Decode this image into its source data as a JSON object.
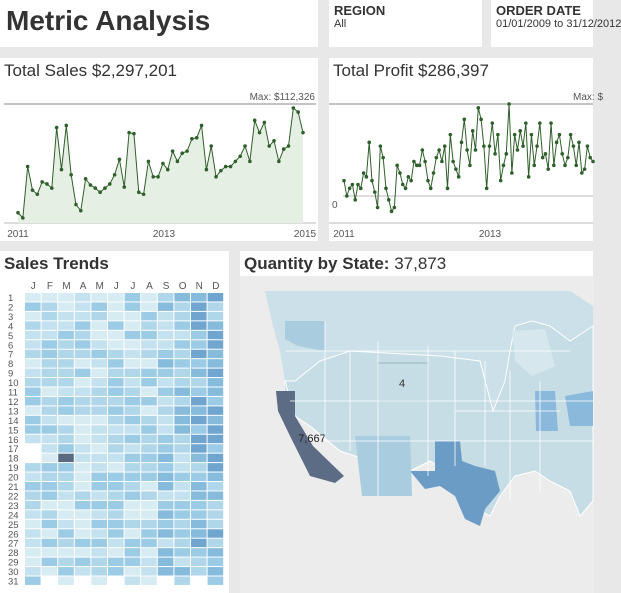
{
  "header": {
    "title": "Metric Analysis"
  },
  "filters": {
    "region": {
      "label": "REGION",
      "value": "All"
    },
    "order_date": {
      "label": "ORDER DATE",
      "value": "01/01/2009 to 31/12/2012"
    }
  },
  "sales": {
    "title": "Total Sales",
    "value": "$2,297,201",
    "max_label": "Max: $112,326",
    "x_ticks": [
      "2011",
      "2013",
      "2015"
    ]
  },
  "profit": {
    "title": "Total Profit",
    "value": "$286,397",
    "max_label": "Max: $",
    "zero_label": "0",
    "x_ticks": [
      "2011",
      "2013"
    ]
  },
  "trends": {
    "title": "Sales Trends",
    "months": [
      "J",
      "F",
      "M",
      "A",
      "M",
      "J",
      "J",
      "A",
      "S",
      "O",
      "N",
      "D"
    ],
    "days": [
      "1",
      "2",
      "3",
      "4",
      "5",
      "6",
      "7",
      "8",
      "9",
      "10",
      "11",
      "12",
      "13",
      "14",
      "15",
      "16",
      "17",
      "18",
      "19",
      "20",
      "21",
      "22",
      "23",
      "24",
      "25",
      "26",
      "27",
      "28",
      "29",
      "30",
      "31"
    ]
  },
  "map": {
    "title": "Quantity by State:",
    "value": "37,873",
    "labels": {
      "wyoming": "4",
      "california": "7,667"
    }
  },
  "colors": {
    "line": "#2f5f2a",
    "area": "#e6efe3",
    "map_dark": "#5c6c85",
    "map_mid": "#6a9cc6",
    "map_light": "#a9ccdf",
    "map_base": "#c6dde6"
  },
  "chart_data": [
    {
      "type": "area",
      "title": "Total Sales",
      "series": [
        {
          "name": "Sales",
          "values": [
            10,
            5,
            55,
            32,
            28,
            40,
            38,
            34,
            93,
            52,
            95,
            47,
            18,
            12,
            43,
            37,
            34,
            30,
            34,
            38,
            47,
            62,
            35,
            88,
            87,
            30,
            28,
            60,
            45,
            45,
            58,
            52,
            70,
            60,
            68,
            70,
            82,
            83,
            95,
            52,
            75,
            45,
            51,
            55,
            55,
            60,
            65,
            75,
            60,
            100,
            88,
            98,
            75,
            80,
            60,
            72,
            75,
            112,
            108,
            88
          ]
        }
      ]
    },
    {
      "type": "line",
      "title": "Total Profit",
      "series": [
        {
          "name": "Profit",
          "values": [
            4,
            0,
            2,
            3,
            -1,
            3,
            2,
            6,
            5,
            14,
            4,
            1,
            -3,
            13,
            10,
            2,
            -1,
            -4,
            -3,
            8,
            6,
            3,
            2,
            5,
            4,
            9,
            8,
            8,
            12,
            9,
            4,
            2,
            6,
            10,
            12,
            9,
            13,
            2,
            16,
            9,
            7,
            5,
            14,
            20,
            12,
            8,
            17,
            12,
            23,
            20,
            13,
            2,
            13,
            19,
            11,
            16,
            4,
            8,
            11,
            24,
            6,
            16,
            12,
            17,
            13,
            19,
            5,
            16,
            8,
            13,
            19,
            10,
            11,
            7,
            19,
            8,
            14,
            16,
            11,
            8,
            10,
            16,
            13,
            8,
            14,
            6,
            7,
            13,
            10,
            9
          ]
        }
      ]
    }
  ]
}
